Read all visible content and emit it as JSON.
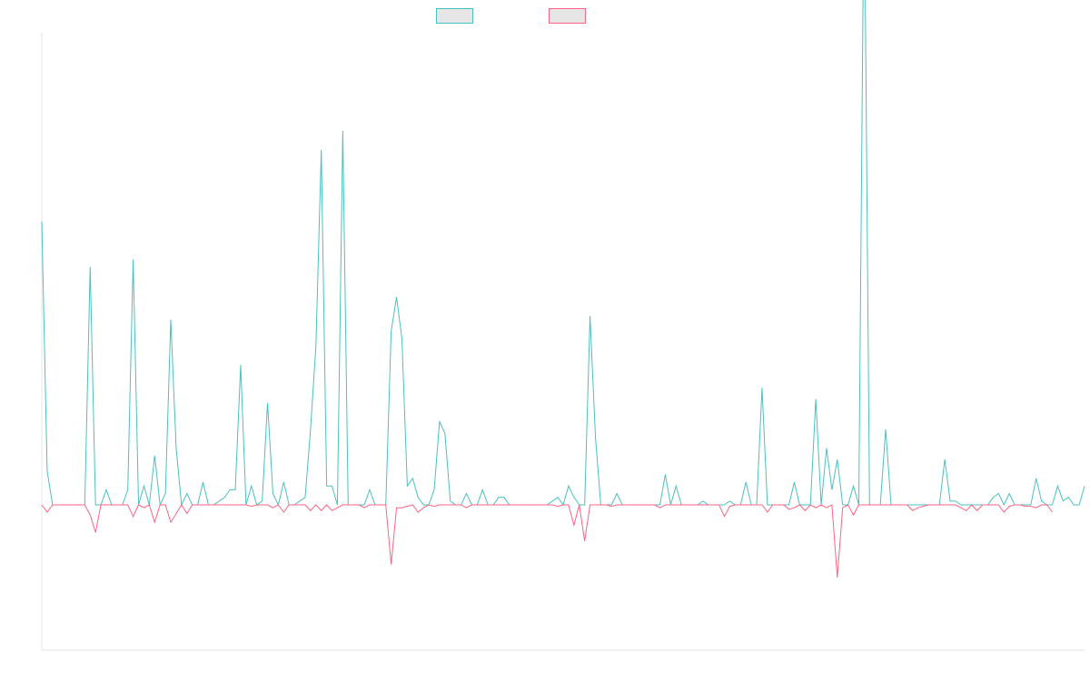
{
  "chart_data": {
    "type": "line",
    "title": "",
    "xlabel": "",
    "ylabel": "",
    "ylim": [
      -1,
      1.25
    ],
    "grid": false,
    "legend_placement": "top-center",
    "series": [
      {
        "color": "#4bc0c0",
        "values": [
          0.75,
          0.09,
          0,
          0,
          0,
          0,
          0,
          0,
          0,
          0.63,
          0,
          0,
          0.04,
          0,
          0,
          0,
          0.04,
          0.65,
          0,
          0.05,
          0,
          0.13,
          0,
          0.03,
          0.49,
          0.15,
          0,
          0.03,
          0,
          0,
          0.06,
          0,
          0,
          0.01,
          0.02,
          0.04,
          0.04,
          0.37,
          0,
          0.05,
          0,
          0.01,
          0.27,
          0.03,
          0,
          0.06,
          0,
          0,
          0.01,
          0.02,
          0.2,
          0.42,
          0.94,
          0.05,
          0.05,
          0,
          0.99,
          0,
          0,
          0,
          0,
          0.04,
          0,
          0,
          0,
          0.46,
          0.55,
          0.44,
          0.05,
          0.07,
          0.02,
          0,
          0,
          0.04,
          0.22,
          0.19,
          0.01,
          0,
          0,
          0.03,
          0,
          0,
          0.04,
          0,
          0,
          0.02,
          0.02,
          0,
          0,
          0,
          0,
          0,
          0,
          0,
          0,
          0.01,
          0.02,
          0,
          0.05,
          0.02,
          0,
          0,
          0.5,
          0.18,
          0,
          0,
          0,
          0.03,
          0,
          0,
          0,
          0,
          0,
          0,
          0,
          0,
          0.08,
          0,
          0.05,
          0,
          0,
          0,
          0,
          0.01,
          0,
          0,
          0,
          0,
          0.01,
          0,
          0,
          0.06,
          0,
          0,
          0.31,
          0,
          0,
          0,
          0,
          0,
          0.06,
          0,
          0,
          0,
          0.28,
          0,
          0.15,
          0.04,
          0.12,
          0,
          0,
          0.05,
          0,
          1.7,
          0,
          0,
          0,
          0.2,
          0,
          0,
          0,
          0,
          0,
          0,
          0,
          0,
          0,
          0,
          0.12,
          0.01,
          0.01,
          0,
          0,
          0,
          0,
          0,
          0,
          0.02,
          0.03,
          0,
          0.03,
          0,
          0,
          0,
          0,
          0.07,
          0.01,
          0,
          0,
          0.05,
          0.01,
          0.02,
          0,
          0,
          0.05
        ]
      },
      {
        "color": "#ff6384",
        "values": [
          0,
          -0.05,
          0,
          0,
          0,
          0,
          0,
          0,
          0,
          -0.07,
          -0.19,
          0,
          0,
          0,
          0,
          0,
          0,
          -0.08,
          0,
          -0.02,
          0,
          -0.12,
          0,
          0,
          -0.12,
          -0.06,
          0,
          -0.06,
          0,
          0,
          0,
          0,
          0,
          0,
          0,
          0,
          0,
          0,
          0,
          -0.01,
          0,
          0,
          0,
          -0.02,
          0,
          -0.05,
          0,
          0,
          0,
          0,
          -0.04,
          0,
          -0.04,
          0,
          -0.04,
          -0.02,
          0,
          0,
          0,
          0,
          -0.02,
          0,
          0,
          0,
          0,
          -0.41,
          -0.02,
          -0.02,
          -0.01,
          0,
          -0.05,
          -0.02,
          0,
          -0.01,
          0,
          0,
          0,
          0,
          0,
          -0.02,
          0,
          0,
          0,
          0,
          0,
          0,
          0,
          0,
          0,
          0,
          0,
          0,
          0,
          0,
          0,
          0,
          -0.01,
          0,
          0,
          -0.14,
          0,
          -0.25,
          0,
          0,
          0,
          0,
          -0.01,
          0,
          0,
          0,
          0,
          0,
          0,
          0,
          0,
          -0.02,
          0,
          0,
          0,
          0,
          0,
          0,
          0,
          0,
          0,
          0,
          0,
          -0.08,
          -0.01,
          0,
          0,
          0,
          0,
          0,
          0,
          -0.05,
          0,
          0,
          0,
          -0.03,
          -0.02,
          0,
          -0.04,
          0,
          -0.02,
          0,
          -0.02,
          0,
          -0.5,
          -0.02,
          0,
          -0.07,
          0,
          0,
          0,
          0,
          0,
          0,
          0,
          0,
          0,
          0,
          -0.04,
          -0.02,
          -0.01,
          0,
          0,
          0,
          0,
          0,
          0,
          -0.02,
          -0.04,
          0,
          -0.04,
          0,
          0,
          0,
          0,
          -0.05,
          -0.01,
          0,
          0,
          -0.01,
          -0.01,
          -0.02,
          0,
          0,
          -0.05
        ]
      }
    ]
  }
}
